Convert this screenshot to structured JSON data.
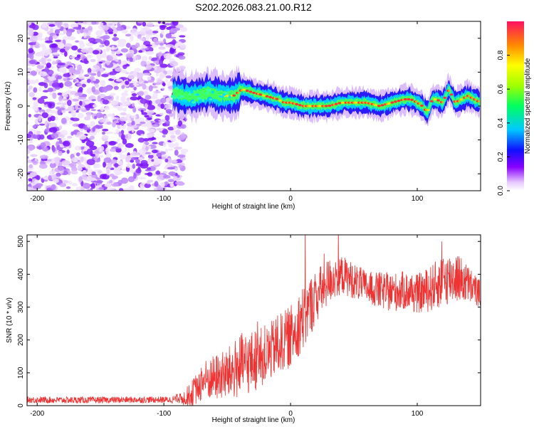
{
  "title": "S202.2026.083.21.00.R12",
  "chart_data": [
    {
      "type": "heatmap",
      "name": "spectrogram",
      "xlabel": "Height of straight line (km)",
      "ylabel": "Frequency (Hz)",
      "xlim": [
        -208,
        150
      ],
      "ylim": [
        -25,
        25
      ],
      "xticks": [
        -200,
        -100,
        0,
        100
      ],
      "yticks": [
        -20,
        -10,
        0,
        10,
        20
      ],
      "colorbar": {
        "label": "Normalized spectral amplitude",
        "range": [
          0,
          1
        ],
        "ticks": [
          0.0,
          0.2,
          0.4,
          0.6,
          0.8
        ],
        "tick_labels": [
          "0.0",
          "0.2",
          "0.4",
          "0.6",
          "0.8"
        ]
      },
      "noise_region_x": [
        -208,
        -88
      ],
      "ridge": {
        "x": [
          -93,
          -85,
          -75,
          -65,
          -55,
          -45,
          -38,
          -30,
          -20,
          -10,
          -5,
          0,
          10,
          20,
          30,
          40,
          50,
          60,
          70,
          80,
          90,
          95,
          100,
          104,
          108,
          112,
          115,
          120,
          125,
          130,
          140,
          150
        ],
        "freq_hz": [
          4,
          3,
          3,
          4,
          3,
          3,
          5,
          4,
          3,
          2,
          1,
          1,
          0,
          0,
          0,
          1,
          1,
          1,
          0,
          1,
          2,
          2,
          1,
          0,
          -2,
          2,
          2,
          1,
          5,
          1,
          3,
          1
        ]
      }
    },
    {
      "type": "line",
      "name": "snr",
      "xlabel": "Height of straight line (km)",
      "ylabel": "SNR (10 * v/v)",
      "xlim": [
        -208,
        150
      ],
      "ylim": [
        0,
        520
      ],
      "xticks": [
        -200,
        -100,
        0,
        100
      ],
      "yticks": [
        0,
        100,
        200,
        300,
        400,
        500
      ],
      "color": "#ee3333",
      "envelope": {
        "x": [
          -208,
          -180,
          -150,
          -120,
          -95,
          -85,
          -78,
          -70,
          -60,
          -50,
          -40,
          -30,
          -20,
          -10,
          0,
          10,
          20,
          30,
          40,
          50,
          60,
          70,
          80,
          90,
          100,
          110,
          120,
          130,
          140,
          150
        ],
        "mean": [
          18,
          17,
          17,
          18,
          18,
          22,
          35,
          75,
          85,
          95,
          120,
          135,
          150,
          185,
          210,
          270,
          330,
          380,
          400,
          380,
          360,
          350,
          345,
          350,
          340,
          355,
          380,
          395,
          370,
          340
        ],
        "amp": [
          10,
          10,
          10,
          10,
          10,
          20,
          40,
          60,
          70,
          80,
          100,
          95,
          90,
          90,
          95,
          100,
          85,
          70,
          60,
          55,
          50,
          55,
          60,
          60,
          60,
          70,
          80,
          80,
          60,
          40
        ]
      }
    }
  ]
}
